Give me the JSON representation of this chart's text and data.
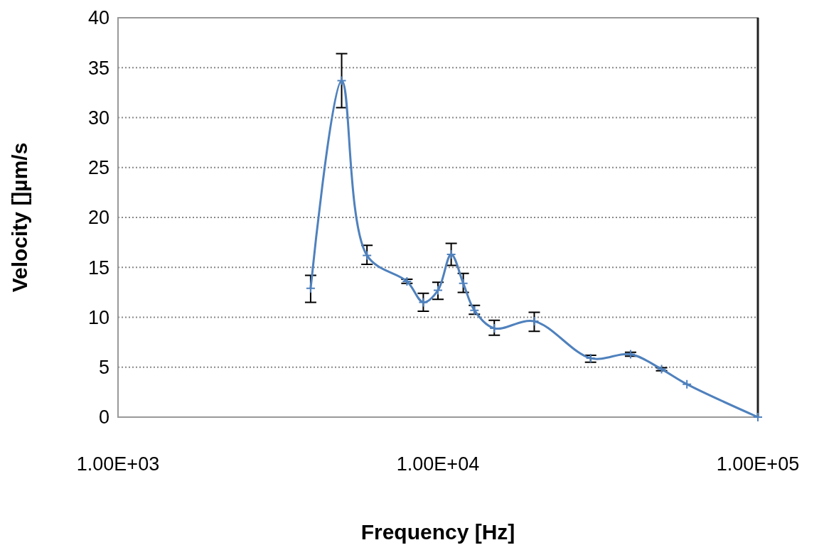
{
  "chart_data": {
    "type": "line",
    "xlabel": "Frequency [Hz]",
    "ylabel": "Velocity []µm/s",
    "log": "x",
    "xlim": [
      1000,
      100000
    ],
    "xticks": [
      {
        "value": 1000,
        "label": "1.00E+03"
      },
      {
        "value": 10000,
        "label": "1.00E+04"
      },
      {
        "value": 100000,
        "label": "1.00E+05"
      }
    ],
    "ylim": [
      0,
      40
    ],
    "yticks": [
      0,
      5,
      10,
      15,
      20,
      25,
      30,
      35,
      40
    ],
    "grid": "y",
    "marker": "cross",
    "line_style": "solid",
    "series": [
      {
        "color": "#4f81bd",
        "x": [
          4000,
          5000,
          6000,
          8000,
          9000,
          10000,
          11000,
          12000,
          13000,
          15000,
          20000,
          30000,
          40000,
          50000,
          60000,
          100000
        ],
        "values": [
          12.9,
          33.7,
          16.2,
          13.6,
          11.5,
          12.7,
          16.3,
          13.4,
          10.7,
          8.9,
          9.6,
          5.9,
          6.3,
          4.8,
          3.3,
          0
        ],
        "errors": [
          [
            11.5,
            14.2
          ],
          [
            31.0,
            36.4
          ],
          [
            15.3,
            17.2
          ],
          [
            13.4,
            13.8
          ],
          [
            10.6,
            12.4
          ],
          [
            11.8,
            13.5
          ],
          [
            15.2,
            17.4
          ],
          [
            12.5,
            14.4
          ],
          [
            10.3,
            11.2
          ],
          [
            8.2,
            9.7
          ],
          [
            8.6,
            10.5
          ],
          [
            5.5,
            6.2
          ],
          [
            6.1,
            6.5
          ],
          [
            4.65,
            4.95
          ],
          null,
          null
        ]
      }
    ]
  }
}
